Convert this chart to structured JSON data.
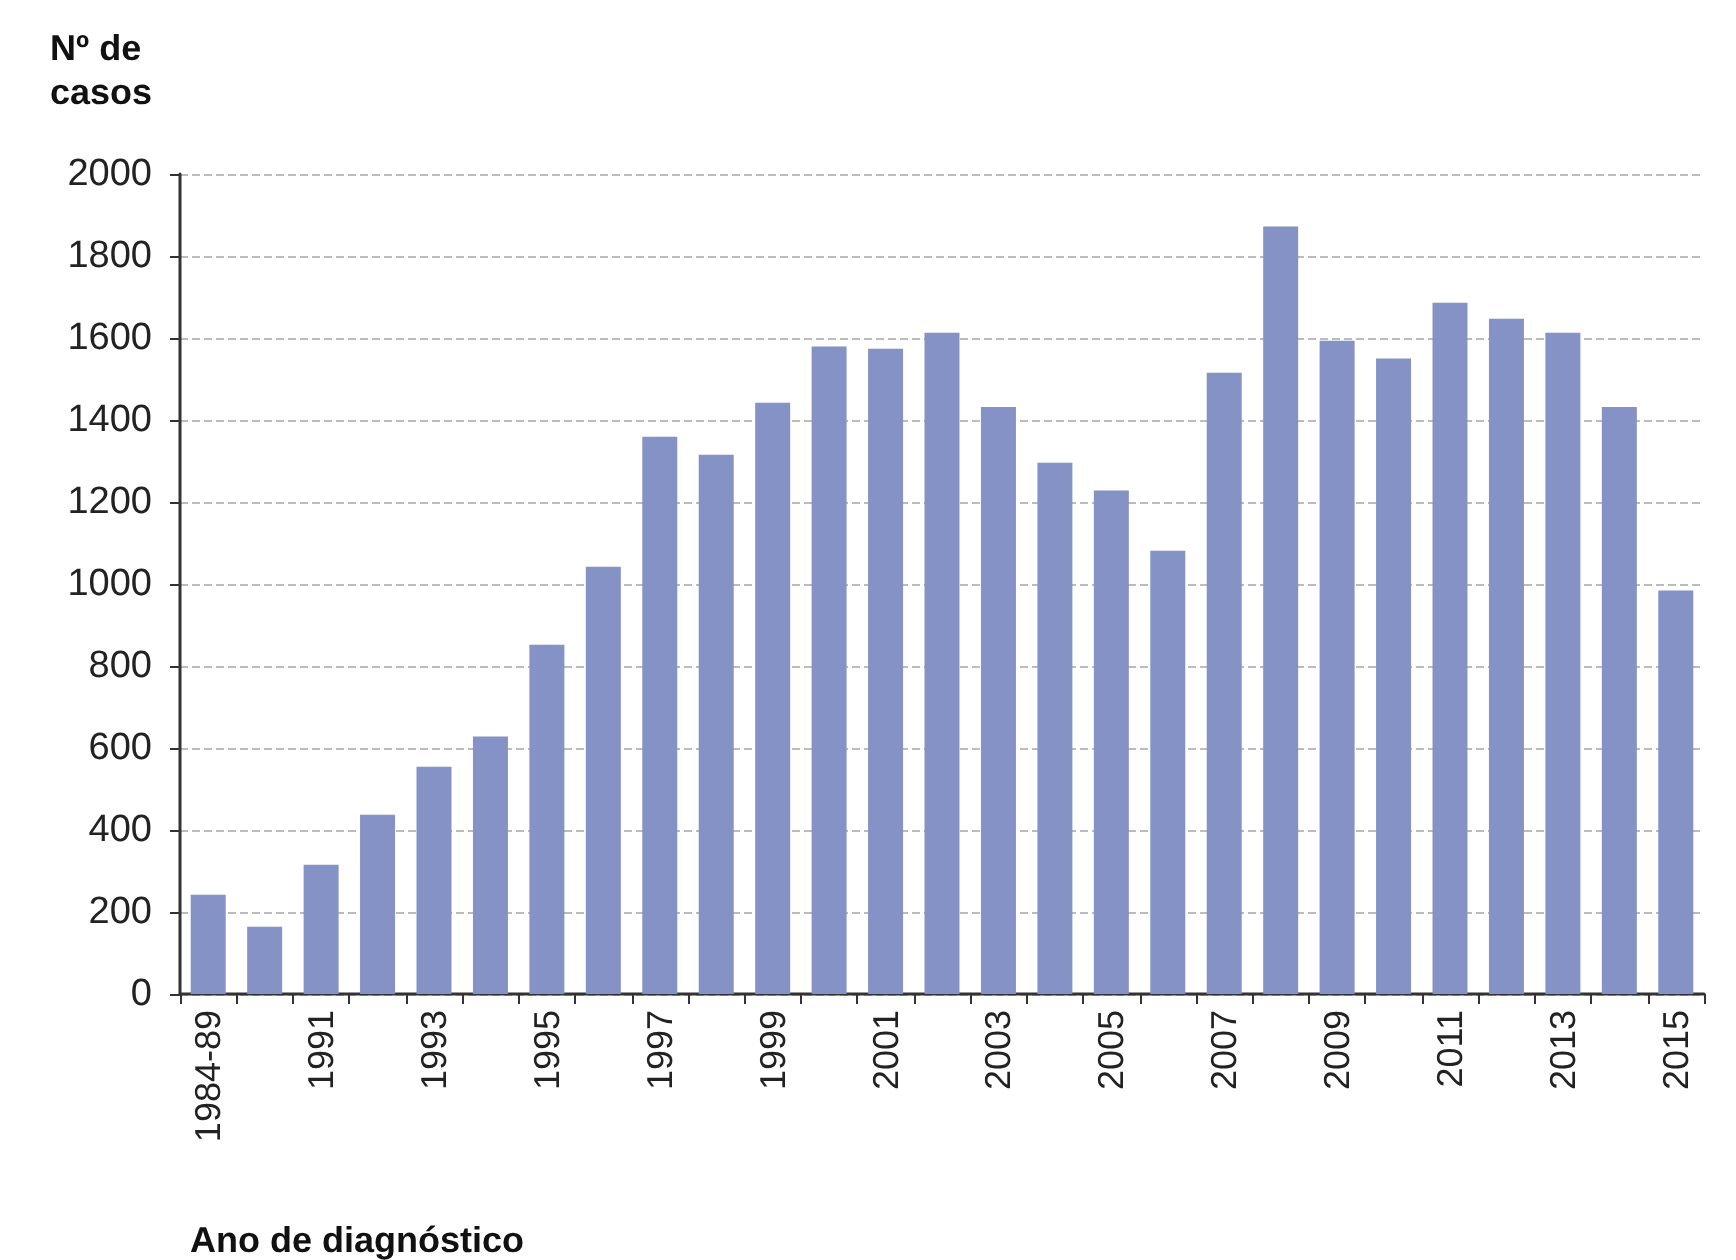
{
  "chart_data": {
    "type": "bar",
    "ylabel": "Nº de casos",
    "xlabel": "Ano de diagnóstico",
    "categories": [
      "1984-89",
      null,
      "1991",
      null,
      "1993",
      null,
      "1995",
      null,
      "1997",
      null,
      "1999",
      null,
      "2001",
      null,
      "2003",
      null,
      "2005",
      null,
      "2007",
      null,
      "2009",
      null,
      "2011",
      null,
      "2013",
      null,
      "2015"
    ],
    "values": [
      242,
      164,
      315,
      437,
      554,
      628,
      852,
      1042,
      1359,
      1315,
      1442,
      1579,
      1574,
      1613,
      1432,
      1296,
      1228,
      1081,
      1515,
      1872,
      1593,
      1550,
      1686,
      1647,
      1613,
      1432,
      984
    ],
    "color": "#8592c6",
    "ylim": [
      0,
      2000
    ],
    "yticks": [
      0,
      200,
      400,
      600,
      800,
      1000,
      1200,
      1400,
      1600,
      1800,
      2000
    ],
    "grid": "y"
  }
}
